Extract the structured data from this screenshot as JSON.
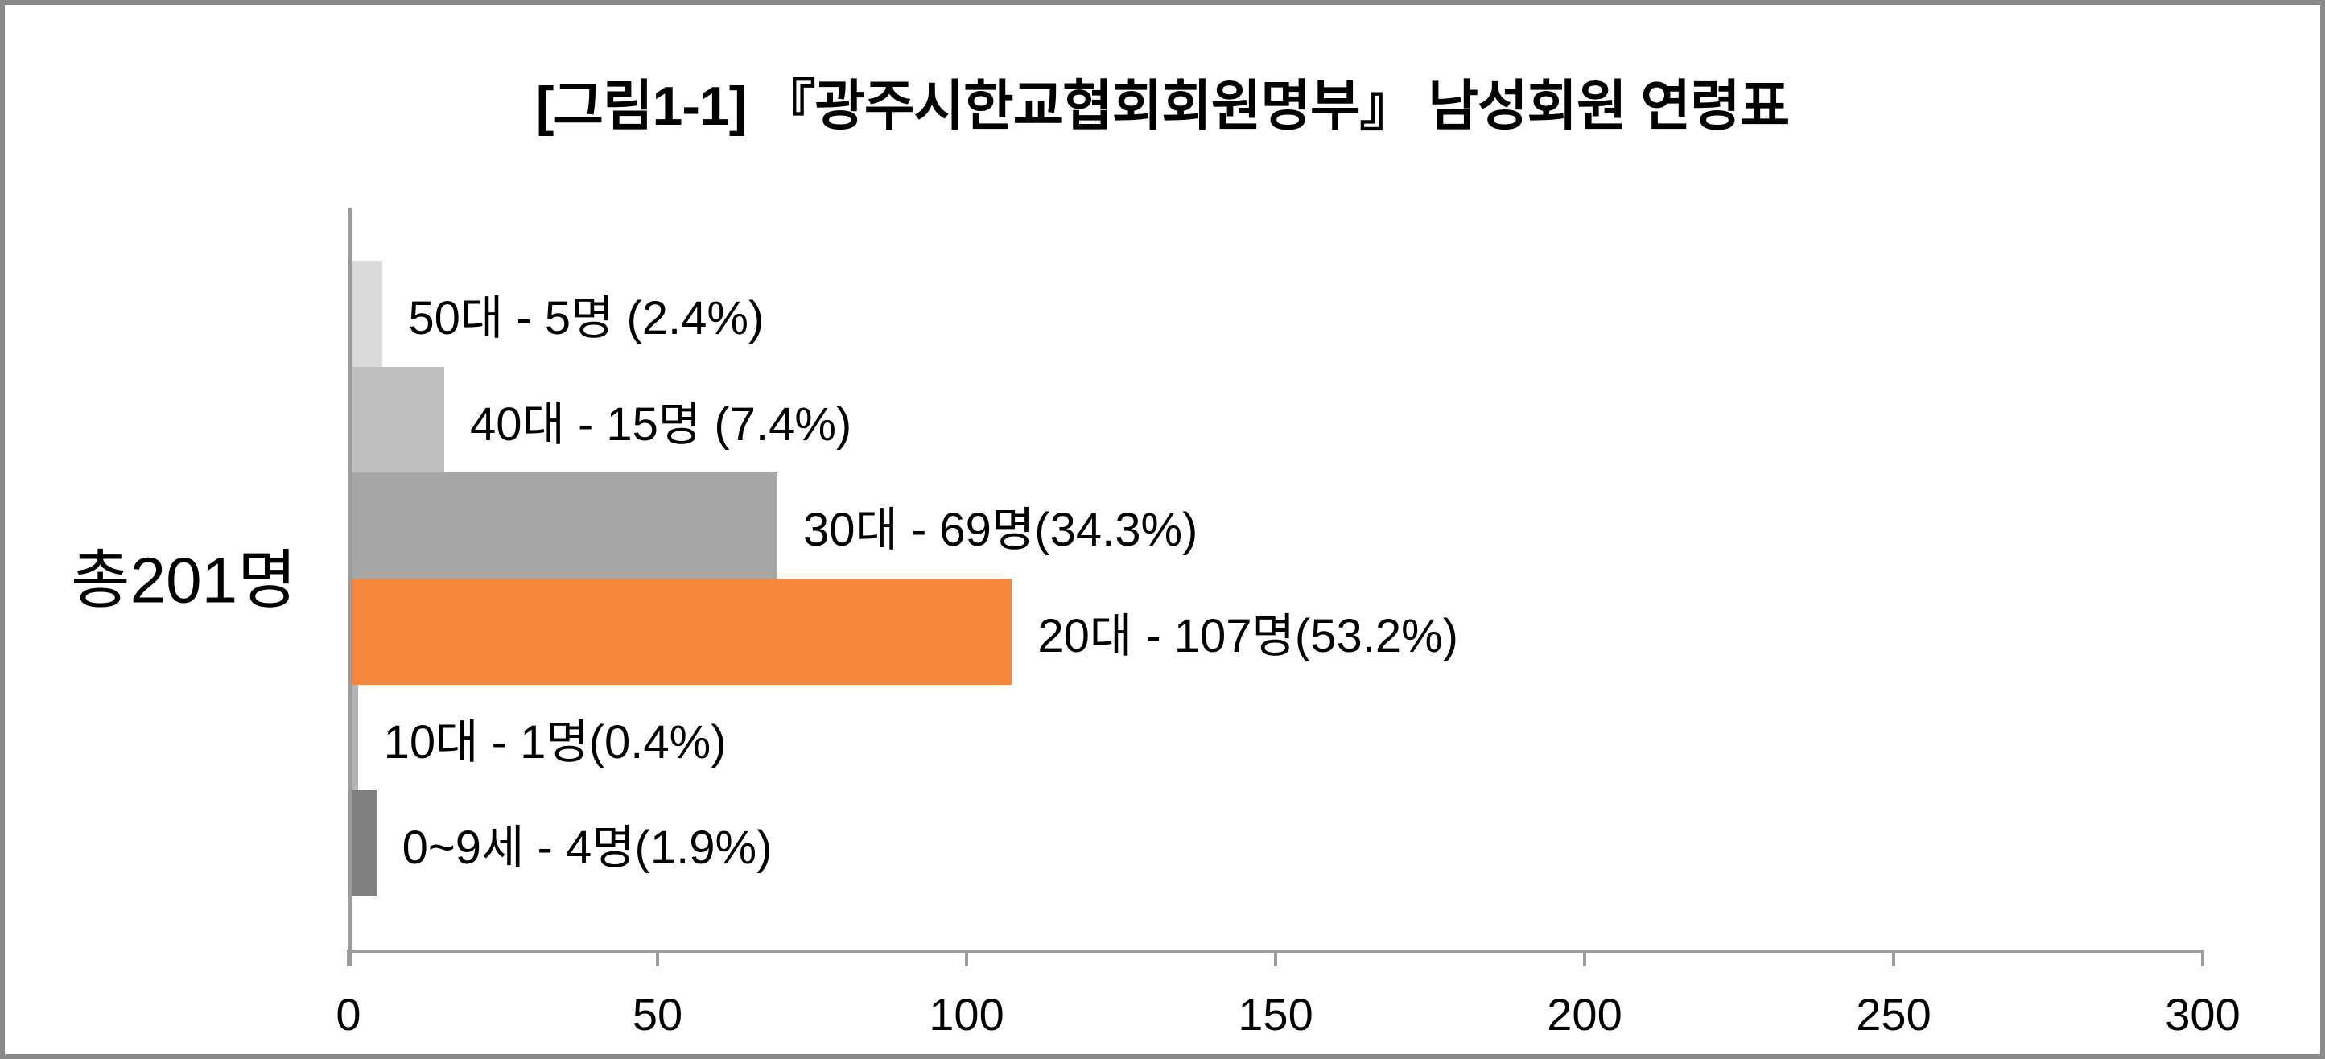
{
  "frame": {
    "border_color": "#8a8a8a",
    "background": "#ffffff"
  },
  "chart_data": {
    "type": "bar",
    "orientation": "horizontal",
    "title": "[그림1-1] 『광주시한교협회회원명부』 남성회원 연령표",
    "y_axis_label": "총201명",
    "total_members": 201,
    "categories": [
      "50대",
      "40대",
      "30대",
      "20대",
      "10대",
      "0~9세"
    ],
    "values": [
      5,
      15,
      69,
      107,
      1,
      4
    ],
    "percentages": [
      2.4,
      7.4,
      34.3,
      53.2,
      0.4,
      1.9
    ],
    "bar_labels": [
      "50대 - 5명 (2.4%)",
      "40대 - 15명 (7.4%)",
      "30대 - 69명(34.3%)",
      "20대 - 107명(53.2%)",
      "10대 - 1명(0.4%)",
      "0~9세 - 4명(1.9%)"
    ],
    "bar_colors": [
      "#d9d9d9",
      "#bfbfbf",
      "#a6a6a6",
      "#f4873c",
      "#b3b3b3",
      "#808080"
    ],
    "xlim": [
      0,
      300
    ],
    "x_ticks": [
      0,
      50,
      100,
      150,
      200,
      250,
      300
    ],
    "x_tick_labels": [
      "0",
      "50",
      "100",
      "150",
      "200",
      "250",
      "300"
    ],
    "axis_color": "#9c9c9c",
    "grid": "off",
    "legend": "none",
    "highlight_color": "#f4873c",
    "text_color": "#000000"
  }
}
